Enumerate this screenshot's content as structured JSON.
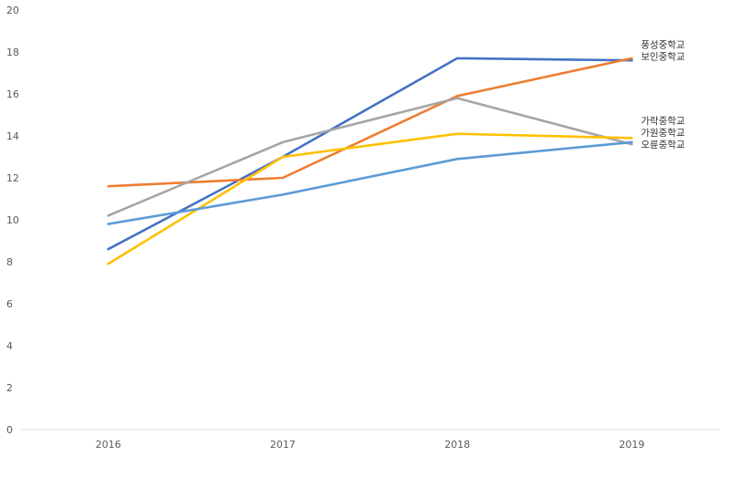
{
  "chart_data": {
    "type": "line",
    "categories": [
      "2016",
      "2017",
      "2018",
      "2019"
    ],
    "ylim": [
      0,
      20
    ],
    "yticks": [
      "0",
      "2",
      "4",
      "6",
      "8",
      "10",
      "12",
      "14",
      "16",
      "18",
      "20"
    ],
    "grid": false,
    "title": "",
    "xlabel": "",
    "ylabel": "",
    "series": [
      {
        "name": "보인중학교",
        "color": "#4472C4",
        "values": [
          8.6,
          13.0,
          17.7,
          17.6
        ]
      },
      {
        "name": "풍성중학교",
        "color": "#ED7D31",
        "values": [
          11.6,
          12.0,
          15.9,
          17.7
        ]
      },
      {
        "name": "오륜중학교",
        "color": "#A5A5A5",
        "values": [
          10.2,
          13.7,
          15.8,
          13.6
        ]
      },
      {
        "name": "가락중학교",
        "color": "#FFC000",
        "values": [
          7.9,
          13.0,
          14.1,
          13.9
        ]
      },
      {
        "name": "가원중학교",
        "color": "#5B9BD5",
        "values": [
          9.8,
          11.2,
          12.9,
          13.7
        ]
      }
    ]
  }
}
